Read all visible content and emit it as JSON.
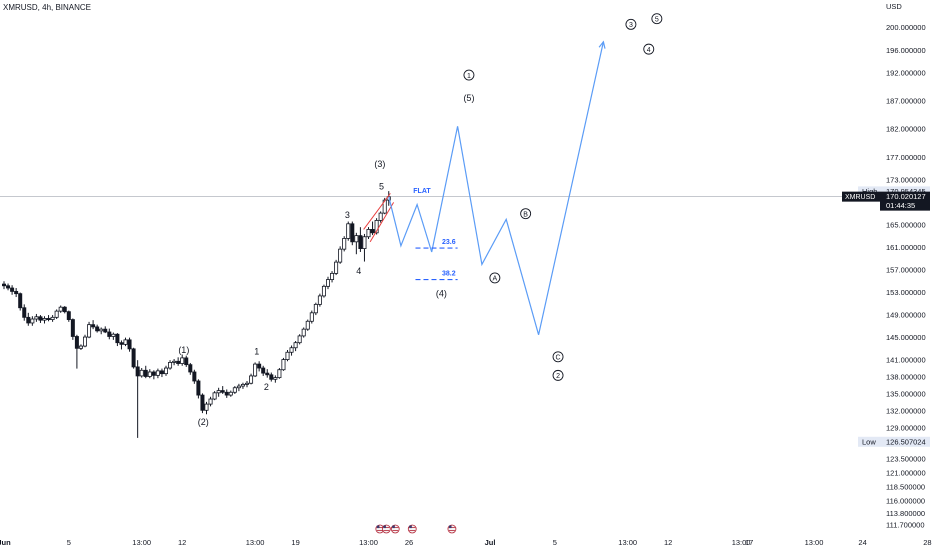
{
  "header": {
    "title": "XMRUSD, 4h, BINANCE"
  },
  "colors": {
    "candle": "#131722",
    "projection": "#5b9cf6",
    "fib": "#2962ff",
    "wedge": "#e83e3e",
    "label": "#131722",
    "axis_text": "#131722",
    "price_line": "#b2b5be",
    "tag_bg": "#131722",
    "hilo_bg": "#e3e9f5"
  },
  "chart_data": {
    "type": "line",
    "title": "XMRUSD, 4h, BINANCE",
    "price_unit": "USD",
    "ylim": [
      110.5,
      203.5
    ],
    "y_ticks": [
      {
        "label": "200.000000",
        "v": 200
      },
      {
        "label": "196.000000",
        "v": 196
      },
      {
        "label": "192.000000",
        "v": 192
      },
      {
        "label": "187.000000",
        "v": 187
      },
      {
        "label": "182.000000",
        "v": 182
      },
      {
        "label": "177.000000",
        "v": 177
      },
      {
        "label": "173.000000",
        "v": 173
      },
      {
        "label": "165.000000",
        "v": 165
      },
      {
        "label": "161.000000",
        "v": 161
      },
      {
        "label": "157.000000",
        "v": 157
      },
      {
        "label": "153.000000",
        "v": 153
      },
      {
        "label": "149.000000",
        "v": 149
      },
      {
        "label": "145.000000",
        "v": 145
      },
      {
        "label": "141.000000",
        "v": 141
      },
      {
        "label": "138.000000",
        "v": 138
      },
      {
        "label": "135.000000",
        "v": 135
      },
      {
        "label": "132.000000",
        "v": 132
      },
      {
        "label": "129.000000",
        "v": 129
      },
      {
        "label": "126.500000",
        "v": 126.5
      },
      {
        "label": "123.500000",
        "v": 123.5
      },
      {
        "label": "121.000000",
        "v": 121
      },
      {
        "label": "118.500000",
        "v": 118.5
      },
      {
        "label": "116.000000",
        "v": 116
      },
      {
        "label": "113.800000",
        "v": 113.8
      },
      {
        "label": "111.700000",
        "v": 111.7
      }
    ],
    "x_ticks": [
      {
        "label": "Jun",
        "bold": true,
        "t": 0
      },
      {
        "label": "5",
        "t": 4
      },
      {
        "label": "13:00",
        "t": 8.5
      },
      {
        "label": "12",
        "t": 11
      },
      {
        "label": "13:00",
        "t": 15.5
      },
      {
        "label": "19",
        "t": 18
      },
      {
        "label": "13:00",
        "t": 22.5
      },
      {
        "label": "26",
        "t": 25
      },
      {
        "label": "Jul",
        "bold": true,
        "t": 30
      },
      {
        "label": "5",
        "t": 34
      },
      {
        "label": "13:00",
        "t": 38.5
      },
      {
        "label": "12",
        "t": 41
      },
      {
        "label": "13:00",
        "t": 45.5
      },
      {
        "label": "17",
        "t": 46
      },
      {
        "label": "13:00",
        "t": 50
      },
      {
        "label": "24",
        "t": 53
      },
      {
        "label": "28",
        "t": 57
      }
    ],
    "current_price": {
      "label": "170.020127",
      "symbol": "XMRUSD",
      "countdown": "01:44:35",
      "v": 170.02
    },
    "high": {
      "label": "High",
      "value": "170.954345",
      "v": 170.95
    },
    "low": {
      "label": "Low",
      "value": "126.507024",
      "v": 126.51
    },
    "candles_ohlc": [
      [
        0.0,
        154.5,
        155.0,
        153.6,
        154.2
      ],
      [
        0.25,
        154.2,
        154.6,
        153.4,
        153.8
      ],
      [
        0.5,
        153.8,
        154.3,
        152.6,
        153.2
      ],
      [
        0.75,
        153.2,
        153.8,
        152.2,
        152.8
      ],
      [
        1.0,
        152.8,
        153.0,
        149.8,
        150.3
      ],
      [
        1.25,
        150.3,
        150.9,
        148.0,
        148.6
      ],
      [
        1.5,
        148.6,
        149.4,
        147.1,
        147.6
      ],
      [
        1.75,
        147.6,
        148.8,
        147.1,
        148.3
      ],
      [
        2.0,
        148.3,
        149.2,
        147.8,
        148.7
      ],
      [
        2.25,
        148.7,
        149.0,
        147.6,
        148.1
      ],
      [
        2.5,
        148.1,
        148.8,
        147.5,
        148.4
      ],
      [
        2.75,
        148.4,
        149.0,
        147.9,
        148.2
      ],
      [
        3.0,
        148.2,
        149.0,
        147.8,
        148.6
      ],
      [
        3.25,
        148.6,
        150.0,
        148.3,
        149.7
      ],
      [
        3.5,
        149.7,
        150.7,
        149.4,
        150.4
      ],
      [
        3.75,
        150.4,
        150.6,
        149.3,
        149.6
      ],
      [
        4.0,
        149.6,
        149.8,
        147.8,
        148.2
      ],
      [
        4.25,
        148.2,
        148.4,
        144.6,
        145.2
      ],
      [
        4.5,
        145.2,
        145.5,
        139.5,
        143.1
      ],
      [
        4.75,
        143.1,
        143.8,
        142.8,
        143.5
      ],
      [
        5.0,
        143.5,
        145.5,
        143.3,
        145.1
      ],
      [
        5.25,
        145.1,
        147.8,
        144.9,
        147.3
      ],
      [
        5.5,
        147.3,
        148.1,
        146.5,
        146.9
      ],
      [
        5.75,
        146.9,
        147.3,
        145.9,
        146.2
      ],
      [
        6.0,
        146.2,
        146.8,
        145.6,
        146.5
      ],
      [
        6.25,
        146.5,
        147.0,
        145.8,
        146.0
      ],
      [
        6.5,
        146.0,
        146.6,
        144.7,
        145.2
      ],
      [
        6.75,
        145.2,
        145.9,
        144.6,
        145.6
      ],
      [
        7.0,
        145.6,
        145.8,
        143.5,
        144.1
      ],
      [
        7.25,
        144.1,
        144.5,
        142.9,
        143.8
      ],
      [
        7.5,
        143.8,
        145.0,
        143.5,
        144.6
      ],
      [
        7.75,
        144.6,
        145.0,
        142.5,
        143.0
      ],
      [
        8.0,
        143.0,
        143.2,
        139.5,
        139.8
      ],
      [
        8.25,
        139.8,
        141.0,
        127.2,
        138.2
      ],
      [
        8.5,
        138.2,
        139.6,
        137.9,
        139.2
      ],
      [
        8.75,
        139.2,
        140.0,
        137.8,
        138.1
      ],
      [
        9.0,
        138.1,
        139.4,
        137.8,
        138.9
      ],
      [
        9.25,
        138.9,
        139.2,
        137.6,
        138.3
      ],
      [
        9.5,
        138.3,
        139.5,
        137.8,
        139.1
      ],
      [
        9.75,
        139.1,
        139.5,
        138.0,
        138.6
      ],
      [
        10.0,
        138.6,
        140.0,
        138.2,
        139.6
      ],
      [
        10.25,
        139.6,
        141.0,
        139.3,
        140.6
      ],
      [
        10.5,
        140.6,
        141.2,
        140.1,
        140.8
      ],
      [
        10.75,
        140.8,
        141.5,
        140.0,
        140.4
      ],
      [
        11.0,
        140.4,
        142.0,
        140.0,
        141.4
      ],
      [
        11.25,
        141.4,
        141.8,
        139.8,
        140.2
      ],
      [
        11.5,
        140.2,
        140.5,
        138.4,
        138.9
      ],
      [
        11.75,
        138.9,
        139.3,
        136.8,
        137.3
      ],
      [
        12.0,
        137.3,
        137.6,
        134.2,
        134.8
      ],
      [
        12.25,
        134.8,
        135.1,
        131.6,
        132.1
      ],
      [
        12.5,
        132.1,
        133.6,
        131.4,
        133.2
      ],
      [
        12.75,
        133.2,
        134.5,
        132.8,
        134.1
      ],
      [
        13.0,
        134.1,
        135.5,
        133.9,
        135.2
      ],
      [
        13.25,
        135.2,
        136.1,
        134.5,
        135.6
      ],
      [
        13.5,
        135.6,
        136.4,
        135.0,
        135.3
      ],
      [
        13.75,
        135.3,
        135.8,
        134.3,
        134.8
      ],
      [
        14.0,
        134.8,
        135.6,
        134.5,
        135.3
      ],
      [
        14.25,
        135.3,
        136.4,
        135.0,
        136.1
      ],
      [
        14.5,
        136.1,
        136.8,
        135.5,
        136.4
      ],
      [
        14.75,
        136.4,
        137.0,
        135.9,
        136.7
      ],
      [
        15.0,
        136.7,
        137.3,
        136.2,
        136.9
      ],
      [
        15.25,
        136.9,
        138.6,
        136.7,
        138.2
      ],
      [
        15.5,
        138.2,
        140.6,
        138.0,
        140.3
      ],
      [
        15.75,
        140.3,
        140.8,
        139.0,
        139.6
      ],
      [
        16.0,
        139.6,
        140.0,
        138.2,
        138.7
      ],
      [
        16.25,
        138.7,
        139.4,
        137.9,
        138.4
      ],
      [
        16.5,
        138.4,
        138.8,
        137.2,
        137.6
      ],
      [
        16.75,
        137.6,
        138.3,
        137.0,
        137.9
      ],
      [
        17.0,
        137.9,
        139.6,
        137.7,
        139.3
      ],
      [
        17.25,
        139.3,
        141.4,
        139.1,
        141.1
      ],
      [
        17.5,
        141.1,
        142.8,
        140.8,
        142.4
      ],
      [
        17.75,
        142.4,
        143.6,
        141.8,
        143.2
      ],
      [
        18.0,
        143.2,
        144.4,
        142.6,
        144.1
      ],
      [
        18.25,
        144.1,
        145.6,
        143.8,
        145.3
      ],
      [
        18.5,
        145.3,
        146.8,
        145.0,
        146.5
      ],
      [
        18.75,
        146.5,
        148.2,
        146.2,
        147.9
      ],
      [
        19.0,
        147.9,
        149.8,
        147.5,
        149.4
      ],
      [
        19.25,
        149.4,
        151.2,
        149.0,
        150.9
      ],
      [
        19.5,
        150.9,
        152.8,
        150.5,
        152.4
      ],
      [
        19.75,
        152.4,
        154.4,
        152.1,
        154.1
      ],
      [
        20.0,
        154.1,
        155.8,
        153.6,
        155.3
      ],
      [
        20.25,
        155.3,
        156.8,
        154.8,
        156.4
      ],
      [
        20.5,
        156.4,
        158.8,
        156.1,
        158.4
      ],
      [
        20.75,
        158.4,
        161.2,
        158.1,
        160.7
      ],
      [
        21.0,
        160.7,
        163.0,
        160.3,
        162.6
      ],
      [
        21.25,
        162.6,
        165.6,
        162.2,
        165.2
      ],
      [
        21.5,
        165.2,
        165.6,
        161.4,
        162.0
      ],
      [
        21.75,
        162.0,
        163.6,
        159.8,
        163.1
      ],
      [
        22.0,
        163.1,
        164.6,
        160.2,
        160.8
      ],
      [
        22.25,
        160.8,
        163.4,
        158.5,
        162.9
      ],
      [
        22.5,
        162.9,
        164.6,
        162.5,
        164.2
      ],
      [
        22.75,
        164.2,
        165.6,
        163.2,
        163.6
      ],
      [
        23.0,
        163.6,
        166.2,
        163.3,
        165.8
      ],
      [
        23.25,
        165.8,
        167.4,
        165.4,
        167.1
      ],
      [
        23.5,
        167.1,
        169.8,
        166.9,
        169.4
      ],
      [
        23.75,
        169.4,
        171.0,
        168.4,
        170.0
      ]
    ],
    "projection_path": [
      [
        23.75,
        170.0
      ],
      [
        24.5,
        161.3
      ],
      [
        25.5,
        168.6
      ],
      [
        26.4,
        160.2
      ],
      [
        28.0,
        182.5
      ],
      [
        29.5,
        158.0
      ],
      [
        31.0,
        166.0
      ],
      [
        33.0,
        145.5
      ],
      [
        37.0,
        197.5
      ]
    ],
    "wedge_lines": [
      [
        [
          22.2,
          164.2
        ],
        [
          23.85,
          170.6
        ]
      ],
      [
        [
          22.6,
          162.0
        ],
        [
          24.05,
          169.0
        ]
      ]
    ],
    "fib_levels": [
      {
        "label": "23.6",
        "v": 160.9,
        "t0": 25.4,
        "t1": 28.0
      },
      {
        "label": "38.2",
        "v": 155.3,
        "t0": 25.4,
        "t1": 28.0
      }
    ],
    "wave_labels": [
      {
        "text": "(1)",
        "t": 11.1,
        "v": 142.8
      },
      {
        "text": "(2)",
        "t": 12.3,
        "v": 130.0
      },
      {
        "text": "1",
        "t": 15.6,
        "v": 142.5
      },
      {
        "text": "2",
        "t": 16.2,
        "v": 136.2
      },
      {
        "text": "3",
        "t": 21.2,
        "v": 166.8
      },
      {
        "text": "4",
        "t": 21.9,
        "v": 156.8
      },
      {
        "text": "5",
        "t": 23.3,
        "v": 171.8
      },
      {
        "text": "(3)",
        "t": 23.2,
        "v": 175.8
      },
      {
        "text": "FLAT",
        "t": 25.8,
        "v": 171.2,
        "color": "#2962ff"
      },
      {
        "text": "(5)",
        "t": 28.7,
        "v": 187.5
      },
      {
        "text": "(4)",
        "t": 27.0,
        "v": 152.8
      }
    ],
    "circled_labels": [
      {
        "text": "1",
        "t": 28.7,
        "v": 191.6
      },
      {
        "text": "A",
        "t": 30.3,
        "v": 155.6
      },
      {
        "text": "B",
        "t": 32.2,
        "v": 167.0
      },
      {
        "text": "C",
        "t": 34.2,
        "v": 141.6
      },
      {
        "text": "2",
        "t": 34.2,
        "v": 138.3
      },
      {
        "text": "3",
        "t": 38.7,
        "v": 200.6
      },
      {
        "text": "4",
        "t": 39.8,
        "v": 196.2
      },
      {
        "text": "5",
        "t": 40.3,
        "v": 201.6
      }
    ],
    "event_icons": [
      {
        "t": 23.2
      },
      {
        "t": 23.6
      },
      {
        "t": 24.15
      },
      {
        "t": 25.2
      },
      {
        "t": 27.65
      }
    ]
  }
}
